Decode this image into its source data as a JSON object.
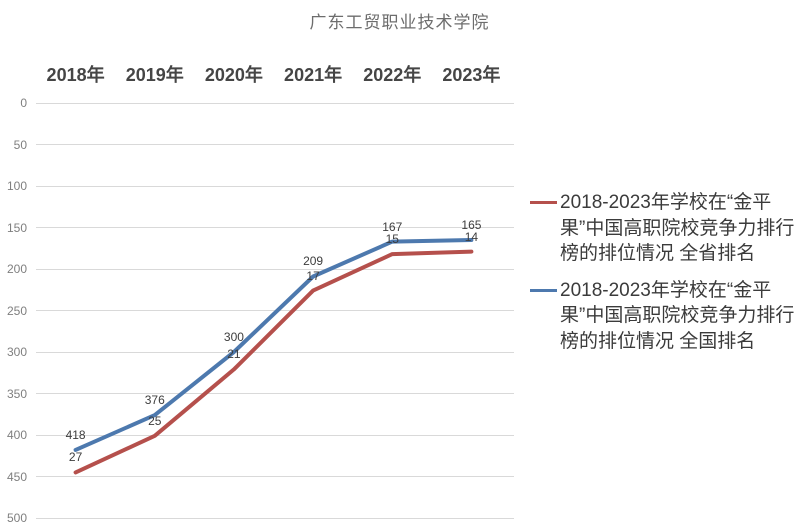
{
  "chart_data": {
    "type": "line",
    "stacked": true,
    "title": "广东工贸职业技术学院",
    "categories": [
      "2018年",
      "2019年",
      "2020年",
      "2021年",
      "2022年",
      "2023年"
    ],
    "series": [
      {
        "name": "2018-2023年学校在“金平果”中国高职院校竞争力排行榜的排位情况 全省排名",
        "color": "#b5504c",
        "values": [
          27,
          25,
          21,
          17,
          15,
          14
        ],
        "point_labels": [
          "27",
          "25",
          "21",
          "17",
          "15",
          "14"
        ]
      },
      {
        "name": "2018-2023年学校在“金平果”中国高职院校竞争力排行榜的排位情况 全国排名",
        "color": "#4d79ae",
        "values": [
          418,
          376,
          300,
          209,
          167,
          165
        ],
        "point_labels": [
          "418",
          "376",
          "300",
          "209",
          "167",
          "165"
        ]
      }
    ],
    "y_axis": {
      "min": 0,
      "max": 500,
      "step": 50,
      "direction": "increases_downward"
    },
    "y_ticks": [
      "0",
      "50",
      "100",
      "150",
      "200",
      "250",
      "300",
      "350",
      "400",
      "450",
      "500"
    ],
    "x_axis_position": "top",
    "grid": true,
    "legend_position": "right",
    "note": "provincial-rank series (red) is rendered stacked on top of the national-rank series (blue), Excel stacked-line style; labels show raw values"
  },
  "colors": {
    "gridline": "#d9d9d9",
    "background": "#ffffff"
  }
}
